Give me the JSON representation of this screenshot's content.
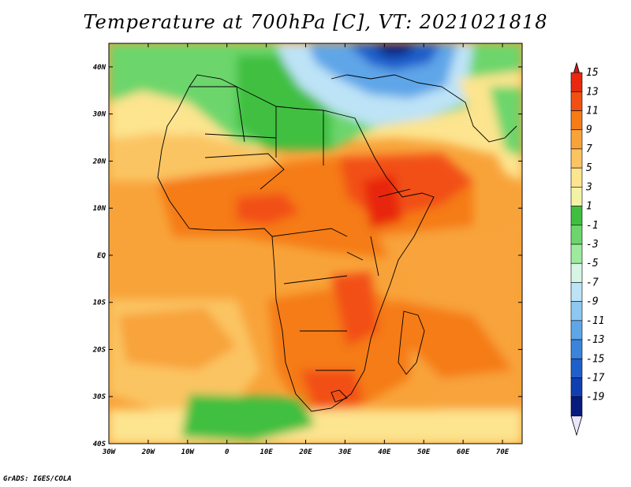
{
  "title": "Temperature at 700hPa [C], VT: 2021021818",
  "credit": "GrADS: IGES/COLA",
  "map": {
    "lat_labels": [
      "40N",
      "30N",
      "20N",
      "10N",
      "EQ",
      "10S",
      "20S",
      "30S",
      "40S"
    ],
    "lon_labels": [
      "30W",
      "20W",
      "10W",
      "0",
      "10E",
      "20E",
      "30E",
      "40E",
      "50E",
      "60E",
      "70E"
    ],
    "lon_range": [
      -30,
      75
    ],
    "lat_range": [
      -40,
      45
    ]
  },
  "colorbar": {
    "labels": [
      "15",
      "13",
      "11",
      "9",
      "7",
      "5",
      "3",
      "1",
      "-1",
      "-3",
      "-5",
      "-7",
      "-9",
      "-11",
      "-13",
      "-15",
      "-17",
      "-19"
    ],
    "colors": [
      "#e8280f",
      "#f24f12",
      "#f57c17",
      "#f8a33a",
      "#fbc462",
      "#fde48f",
      "#f4f2a5",
      "#3fbf3f",
      "#6cd66c",
      "#9eeb9e",
      "#d6f5e5",
      "#bde3f7",
      "#8ec8f1",
      "#5ea6e8",
      "#3a84dc",
      "#1f5fcb",
      "#103fb3",
      "#081a7d"
    ],
    "top_arrow": "#c81e1e",
    "bottom_arrow": "#ebe6ff"
  }
}
